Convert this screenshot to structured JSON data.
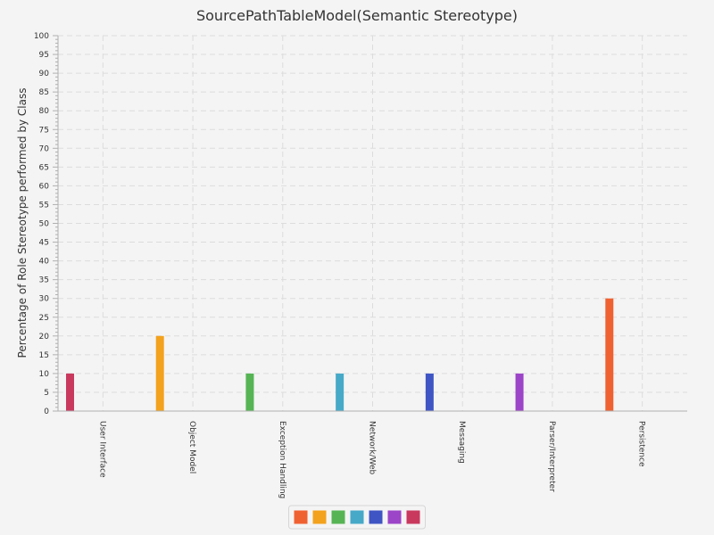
{
  "chart_data": {
    "type": "bar",
    "title": "SourcePathTableModel(Semantic Stereotype)",
    "xlabel": "",
    "ylabel": "Percentage of Role Stereotype performed by Class",
    "ylim": [
      0,
      100
    ],
    "ytick_step": 5,
    "grid": true,
    "legend_position": "bottom",
    "categories": [
      "User Interface",
      "Object Model",
      "Exception Handling",
      "Network/Web",
      "Messaging",
      "Parser/Interpreter",
      "Persistence"
    ],
    "values": [
      10,
      20,
      10,
      10,
      10,
      10,
      30
    ],
    "colors": [
      "#c9395e",
      "#f3a21d",
      "#56b454",
      "#47a9c8",
      "#3f55c4",
      "#9c45c8",
      "#f06131"
    ],
    "legend_colors": [
      "#f06131",
      "#f3a21d",
      "#56b454",
      "#47a9c8",
      "#3f55c4",
      "#9c45c8",
      "#c9395e"
    ]
  }
}
